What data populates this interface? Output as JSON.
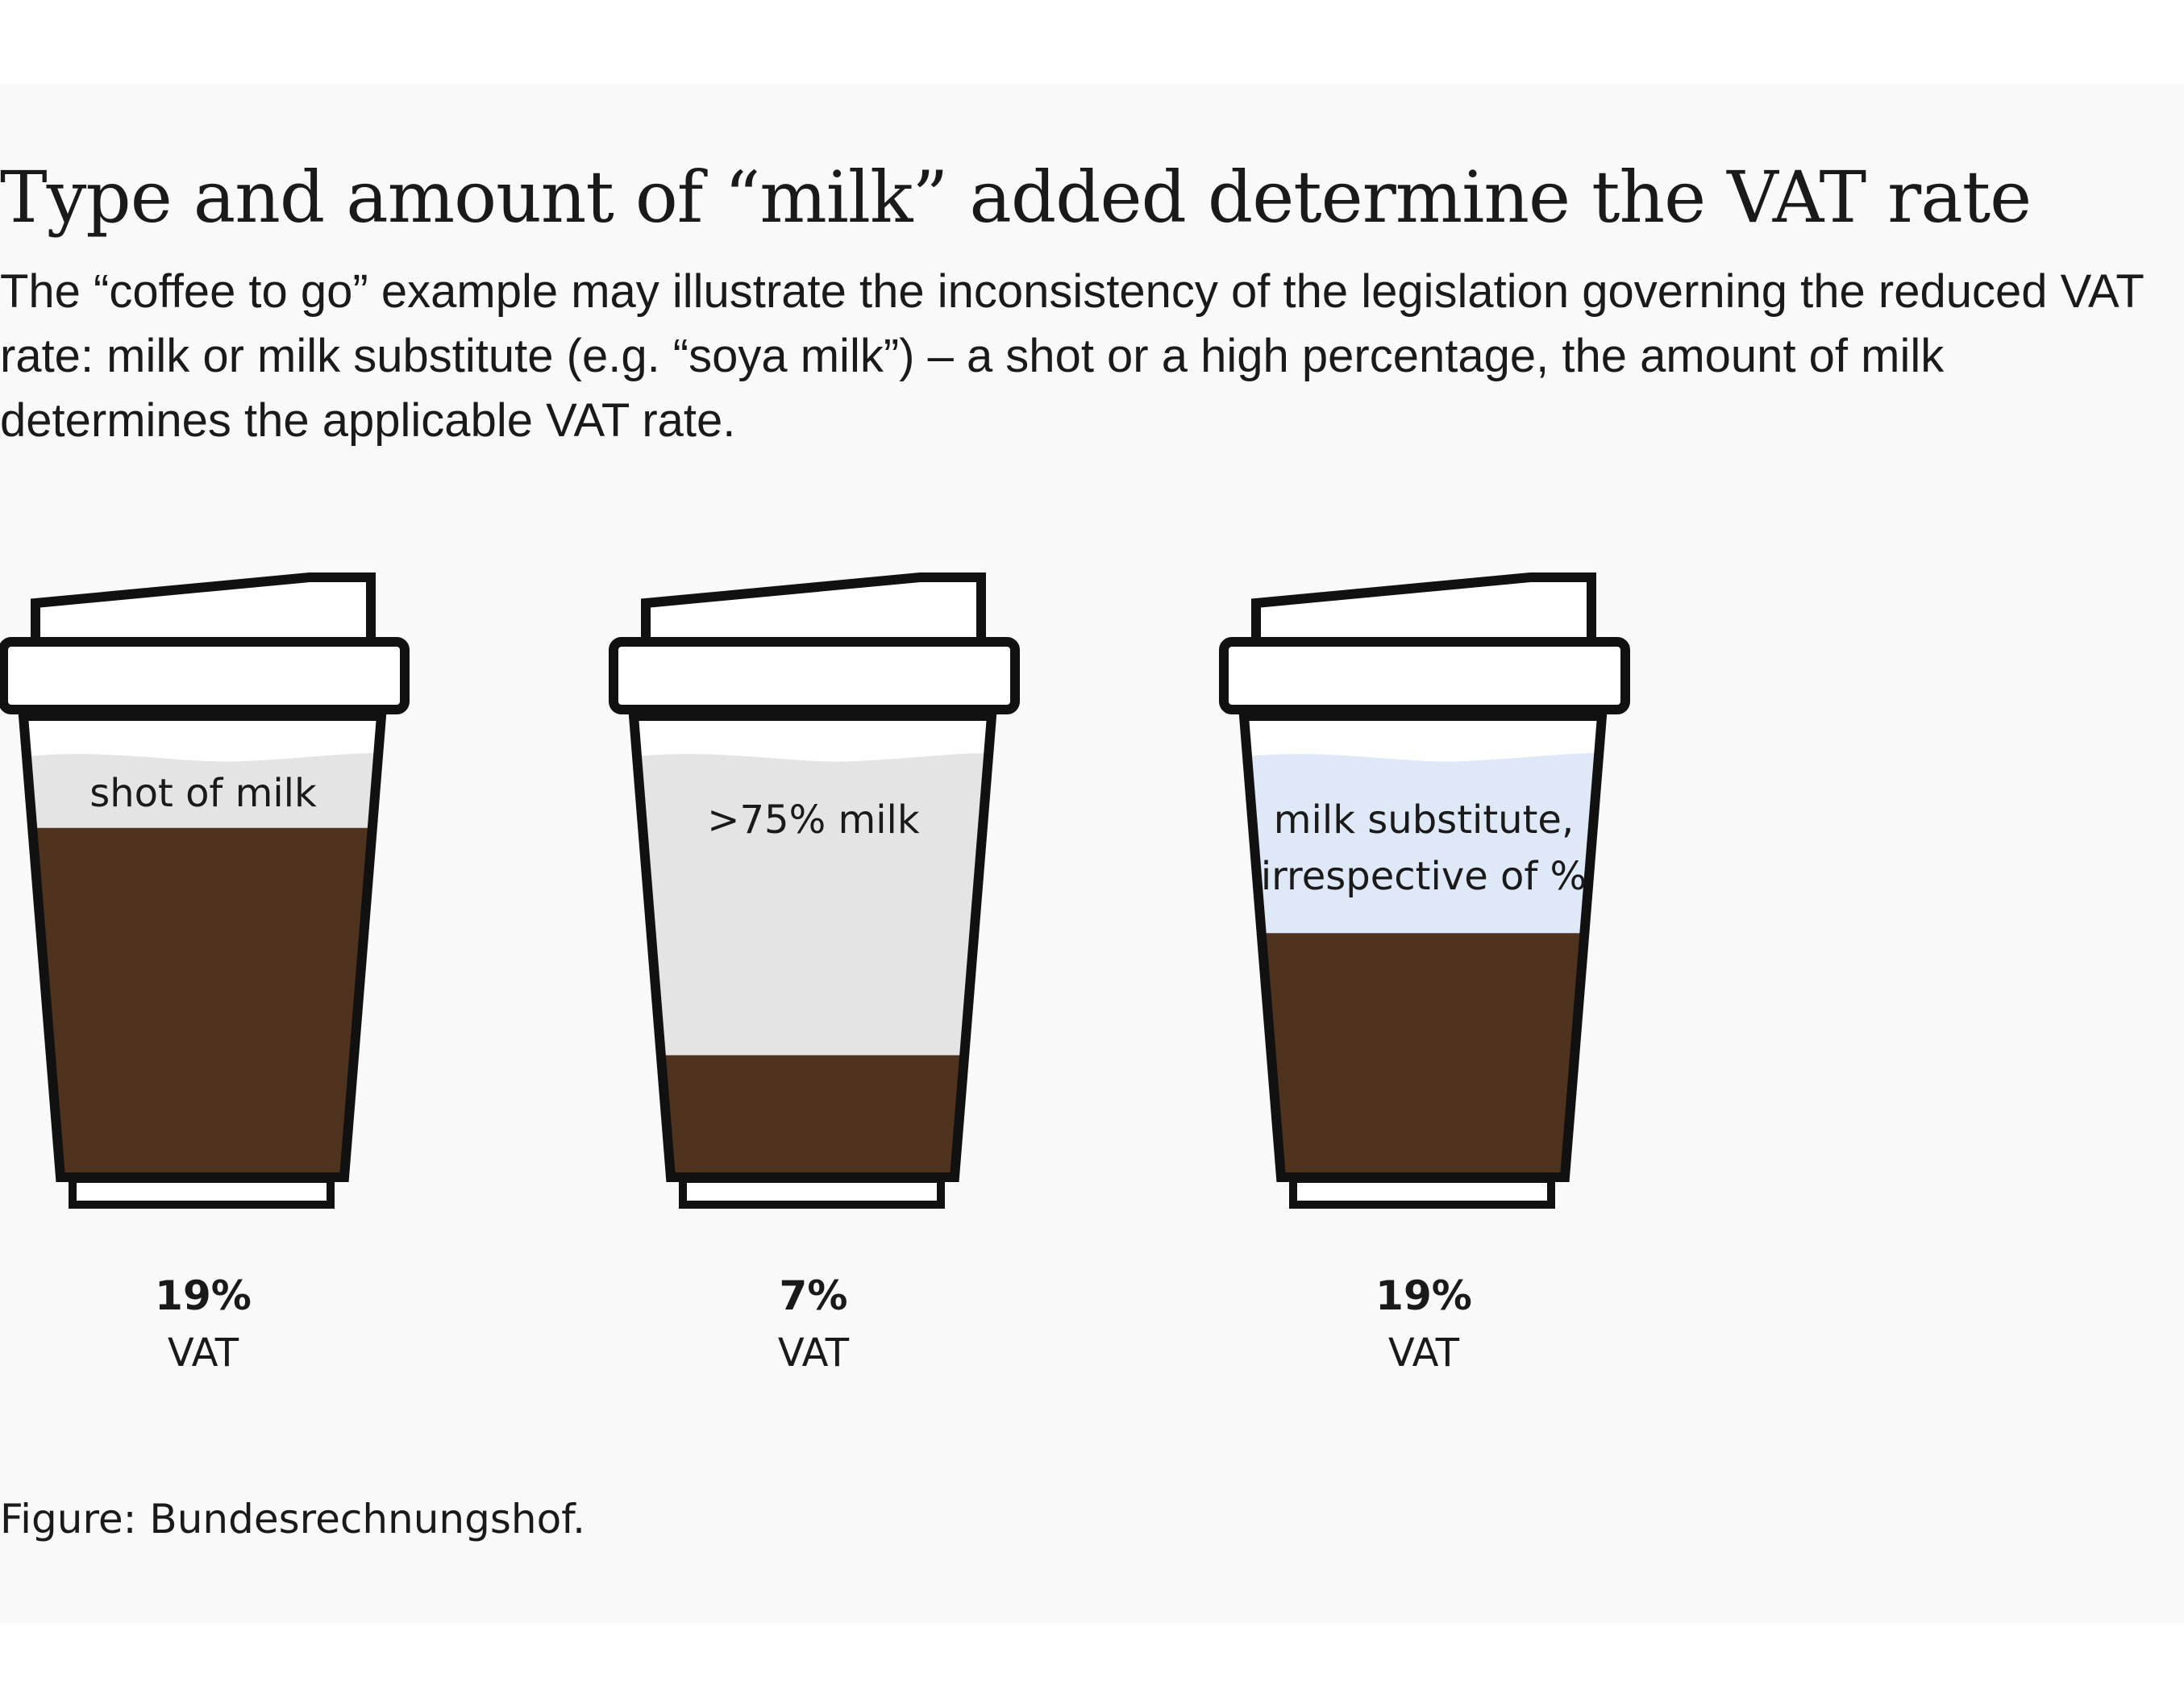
{
  "header": {
    "title": "Type and amount of “milk” added determine the VAT rate",
    "subtitle": "The “coffee to go” example may illustrate the inconsistency of the legislation governing the reduced VAT rate: milk or milk substitute (e.g. “soya milk”) – a shot or a high percentage, the amount of milk determines the applicable VAT rate."
  },
  "cups": [
    {
      "label_lines": [
        "shot of milk"
      ],
      "vat_rate": "19%",
      "vat_text": "VAT",
      "milk_fraction": 0.17,
      "milk_color": "#e4e4e4"
    },
    {
      "label_lines": [
        ">75% milk"
      ],
      "vat_rate": "7%",
      "vat_text": "VAT",
      "milk_fraction": 0.71,
      "milk_color": "#e4e4e4"
    },
    {
      "label_lines": [
        "milk substitute,",
        "irrespective of %"
      ],
      "vat_rate": "19%",
      "vat_text": "VAT",
      "milk_fraction": 0.42,
      "milk_color": "#dfe8f6"
    }
  ],
  "colors": {
    "coffee": "#4f331e",
    "outline": "#111111"
  },
  "footer": {
    "source": "Figure: Bundesrechnungshof."
  }
}
